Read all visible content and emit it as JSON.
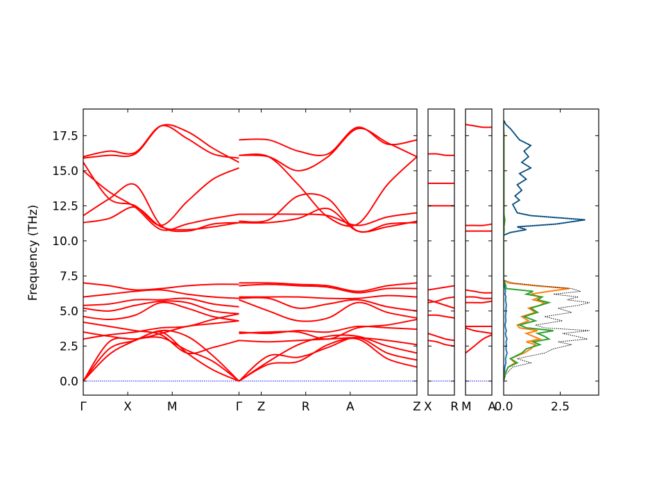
{
  "colors": {
    "band": "#ff0000",
    "zero_line": "#0000ff",
    "dos_total": "#000000",
    "dos_species_1": "#1f77b4",
    "dos_species_2": "#ff7f0e",
    "dos_species_3": "#2ca02c"
  },
  "chart_data": {
    "type": "line",
    "title": "",
    "ylabel": "Frequency (THz)",
    "ylim": [
      -1.0,
      19.4
    ],
    "yticks": [
      "0.0",
      "2.5",
      "5.0",
      "7.5",
      "10.0",
      "12.5",
      "15.0",
      "17.5"
    ],
    "ytick_values": [
      0.0,
      2.5,
      5.0,
      7.5,
      10.0,
      12.5,
      15.0,
      17.5
    ],
    "band_panels": [
      {
        "labels": [
          "Γ",
          "X",
          "M",
          "Γ",
          "Z",
          "R",
          "A",
          "Z"
        ],
        "positions": [
          0,
          1,
          2,
          3.5,
          4,
          5,
          6,
          7.5
        ],
        "segments": [
          {
            "from": 0,
            "to": 3.5,
            "bands": [
              [
                0.0,
                2.8,
                3.0,
                3.1,
                2.2,
                1.4,
                0.0
              ],
              [
                0.0,
                2.3,
                2.9,
                3.5,
                2.0,
                0.8,
                0.0
              ],
              [
                0.0,
                1.9,
                2.9,
                3.6,
                3.2,
                1.8,
                0.0
              ],
              [
                3.5,
                3.2,
                3.0,
                3.4,
                3.9,
                4.1,
                4.3
              ],
              [
                3.0,
                3.3,
                3.5,
                3.8,
                3.9,
                4.4,
                4.8
              ],
              [
                4.2,
                3.9,
                3.6,
                3.3,
                2.0,
                2.4,
                2.9
              ],
              [
                4.6,
                4.4,
                4.7,
                5.6,
                5.2,
                4.6,
                4.3
              ],
              [
                5.2,
                5.0,
                5.4,
                5.7,
                5.6,
                5.0,
                4.8
              ],
              [
                5.4,
                5.5,
                5.8,
                5.8,
                5.9,
                5.5,
                5.3
              ],
              [
                6.0,
                6.2,
                6.4,
                6.5,
                6.2,
                6.0,
                5.9
              ],
              [
                7.0,
                6.8,
                6.5,
                6.6,
                6.8,
                6.9,
                6.9
              ],
              [
                11.3,
                11.6,
                12.4,
                11.0,
                10.8,
                11.0,
                11.3
              ],
              [
                11.8,
                13.0,
                14.0,
                11.1,
                10.7,
                11.2,
                11.3
              ],
              [
                15.0,
                13.5,
                12.4,
                10.8,
                11.2,
                11.6,
                11.9
              ],
              [
                15.6,
                13.0,
                12.5,
                11.1,
                12.8,
                14.4,
                15.2
              ],
              [
                15.9,
                16.1,
                16.2,
                18.2,
                17.8,
                16.6,
                15.6
              ],
              [
                16.0,
                16.4,
                16.3,
                18.2,
                17.3,
                16.2,
                15.9
              ]
            ]
          },
          {
            "from": 3.5,
            "to": 7.5,
            "bands": [
              [
                0.0,
                1.2,
                1.4,
                2.6,
                3.0,
                1.6,
                1.0
              ],
              [
                0.0,
                1.8,
                1.7,
                2.4,
                3.1,
                2.0,
                1.5
              ],
              [
                0.0,
                1.4,
                2.6,
                3.2,
                3.2,
                2.5,
                2.0
              ],
              [
                2.9,
                2.8,
                2.9,
                3.0,
                3.1,
                2.9,
                2.6
              ],
              [
                3.4,
                3.5,
                3.5,
                3.0,
                3.8,
                4.0,
                4.4
              ],
              [
                3.5,
                3.4,
                3.6,
                3.5,
                3.9,
                3.8,
                3.7
              ],
              [
                5.8,
                5.0,
                4.3,
                4.5,
                5.6,
                4.9,
                4.5
              ],
              [
                5.9,
                5.9,
                5.2,
                5.5,
                5.8,
                5.3,
                5.0
              ],
              [
                6.0,
                6.0,
                6.0,
                5.9,
                5.9,
                6.1,
                6.0
              ],
              [
                6.8,
                6.9,
                6.8,
                6.7,
                6.3,
                6.6,
                6.6
              ],
              [
                7.0,
                7.0,
                6.9,
                6.8,
                6.4,
                6.8,
                7.0
              ],
              [
                11.3,
                11.3,
                11.6,
                12.3,
                10.7,
                11.0,
                11.4
              ],
              [
                11.4,
                11.5,
                13.2,
                13.0,
                10.7,
                11.2,
                11.3
              ],
              [
                11.9,
                11.9,
                11.9,
                11.8,
                11.1,
                11.7,
                12.0
              ],
              [
                16.1,
                16.0,
                14.0,
                11.7,
                11.2,
                14.0,
                16.0
              ],
              [
                16.1,
                16.0,
                15.0,
                16.0,
                18.0,
                17.0,
                16.0
              ],
              [
                17.2,
                17.2,
                16.4,
                16.2,
                18.1,
                16.9,
                17.2
              ]
            ]
          }
        ]
      },
      {
        "labels": [
          "X",
          "R"
        ],
        "positions": [
          0,
          1
        ],
        "segments": [
          {
            "from": 0,
            "to": 1,
            "bands": [
              [
                2.9,
                2.8,
                2.6,
                2.5
              ],
              [
                3.4,
                3.2,
                3.0,
                2.9
              ],
              [
                4.7,
                4.7,
                4.6,
                4.5
              ],
              [
                5.6,
                5.7,
                5.9,
                6.0
              ],
              [
                5.8,
                5.6,
                5.4,
                5.2
              ],
              [
                6.5,
                6.6,
                6.7,
                6.8
              ],
              [
                12.5,
                12.5,
                12.5,
                12.5
              ],
              [
                14.1,
                14.1,
                14.1,
                14.1
              ],
              [
                16.2,
                16.2,
                16.1,
                16.1
              ]
            ]
          }
        ]
      },
      {
        "labels": [
          "M",
          "A"
        ],
        "positions": [
          0,
          1
        ],
        "segments": [
          {
            "from": 0,
            "to": 1,
            "bands": [
              [
                2.0,
                2.5,
                3.0,
                3.3
              ],
              [
                3.8,
                3.6,
                3.5,
                3.4
              ],
              [
                3.9,
                3.9,
                3.9,
                3.9
              ],
              [
                5.6,
                5.6,
                5.6,
                5.7
              ],
              [
                6.0,
                6.0,
                5.9,
                5.9
              ],
              [
                6.5,
                6.4,
                6.3,
                6.3
              ],
              [
                10.7,
                10.7,
                10.7,
                10.7
              ],
              [
                11.1,
                11.1,
                11.1,
                11.2
              ],
              [
                18.3,
                18.2,
                18.1,
                18.1
              ]
            ]
          }
        ]
      }
    ],
    "dos_panel": {
      "xlim": [
        0.0,
        4.2
      ],
      "xticks": [
        "0.0",
        "2.5"
      ],
      "xtick_values": [
        0.0,
        2.5
      ],
      "freq": [
        0.0,
        0.5,
        1.0,
        1.3,
        1.6,
        2.0,
        2.3,
        2.6,
        2.8,
        3.0,
        3.2,
        3.4,
        3.6,
        3.8,
        4.0,
        4.3,
        4.6,
        4.9,
        5.2,
        5.4,
        5.6,
        5.8,
        6.0,
        6.2,
        6.4,
        6.6,
        6.8,
        7.0,
        7.2,
        10.4,
        10.6,
        10.8,
        11.0,
        11.2,
        11.5,
        11.8,
        12.0,
        12.3,
        12.6,
        12.9,
        13.2,
        13.6,
        14.0,
        14.4,
        14.8,
        15.2,
        15.6,
        16.0,
        16.4,
        16.8,
        17.2,
        17.6,
        18.0,
        18.3,
        18.6
      ],
      "series": [
        {
          "color_key": "dos_total",
          "dotted": true,
          "values": [
            0.0,
            0.1,
            0.4,
            1.2,
            0.6,
            1.8,
            2.2,
            3.0,
            2.4,
            3.7,
            3.2,
            2.6,
            3.8,
            1.8,
            1.4,
            2.6,
            1.8,
            3.0,
            2.4,
            3.3,
            3.8,
            2.8,
            3.3,
            2.2,
            3.4,
            3.0,
            1.6,
            0.4,
            0.0,
            0.0,
            0.3,
            1.0,
            0.6,
            2.4,
            3.6,
            1.2,
            0.6,
            0.5,
            0.4,
            0.7,
            0.5,
            0.8,
            0.6,
            1.0,
            0.7,
            1.2,
            0.8,
            1.1,
            0.9,
            1.2,
            0.7,
            0.5,
            0.3,
            0.1,
            0.0
          ]
        },
        {
          "color_key": "dos_species_1",
          "dotted": false,
          "values": [
            0.0,
            0.02,
            0.05,
            0.1,
            0.08,
            0.15,
            0.1,
            0.12,
            0.1,
            0.15,
            0.1,
            0.08,
            0.12,
            0.08,
            0.06,
            0.1,
            0.08,
            0.1,
            0.1,
            0.12,
            0.1,
            0.08,
            0.1,
            0.06,
            0.08,
            0.06,
            0.04,
            0.02,
            0.0,
            0.0,
            0.3,
            1.0,
            0.6,
            2.3,
            3.6,
            1.2,
            0.6,
            0.5,
            0.4,
            0.7,
            0.5,
            0.8,
            0.6,
            1.0,
            0.7,
            1.2,
            0.8,
            1.1,
            0.9,
            1.2,
            0.7,
            0.5,
            0.3,
            0.1,
            0.0
          ]
        },
        {
          "color_key": "dos_species_2",
          "dotted": false,
          "values": [
            0.0,
            0.05,
            0.2,
            0.5,
            0.3,
            0.9,
            1.2,
            1.4,
            1.0,
            1.6,
            1.3,
            1.0,
            1.5,
            0.7,
            0.6,
            1.1,
            0.8,
            1.4,
            1.1,
            1.6,
            1.8,
            1.3,
            1.6,
            1.2,
            2.0,
            2.9,
            1.4,
            0.2,
            0.0,
            0.0,
            0.01,
            0.02,
            0.01,
            0.03,
            0.05,
            0.02,
            0.01,
            0.01,
            0.01,
            0.01,
            0.01,
            0.01,
            0.01,
            0.01,
            0.01,
            0.01,
            0.01,
            0.01,
            0.01,
            0.01,
            0.01,
            0.01,
            0.0,
            0.0,
            0.0
          ]
        },
        {
          "color_key": "dos_species_3",
          "dotted": false,
          "values": [
            0.0,
            0.05,
            0.2,
            0.6,
            0.3,
            0.8,
            1.0,
            1.6,
            1.3,
            2.0,
            1.8,
            1.5,
            2.2,
            1.0,
            0.7,
            1.4,
            0.9,
            1.5,
            1.2,
            1.6,
            2.0,
            1.5,
            1.7,
            1.0,
            1.3,
            0.1,
            0.1,
            0.05,
            0.0,
            0.0,
            0.01,
            0.02,
            0.01,
            0.03,
            0.05,
            0.02,
            0.01,
            0.01,
            0.01,
            0.01,
            0.01,
            0.01,
            0.01,
            0.01,
            0.01,
            0.01,
            0.01,
            0.01,
            0.01,
            0.01,
            0.01,
            0.01,
            0.0,
            0.0,
            0.0
          ]
        }
      ]
    }
  }
}
